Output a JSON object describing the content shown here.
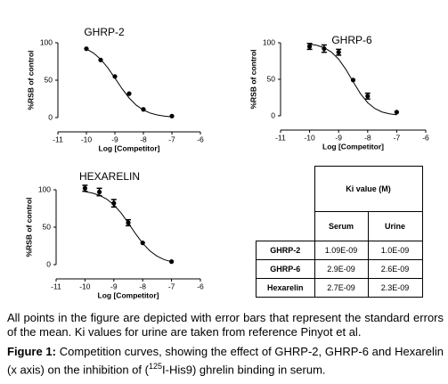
{
  "chart_data": [
    {
      "type": "scatter",
      "title": "GHRP-2",
      "x_label": "Log [Competitor]",
      "y_label": "%RSB of control",
      "xlim": [
        -11,
        -6
      ],
      "xticks": [
        -11,
        -10,
        -9,
        -8,
        -7,
        -6
      ],
      "ylim": [
        0,
        100
      ],
      "yticks": [
        0,
        50,
        100
      ],
      "series": [
        {
          "color": "#000000",
          "x": [
            -10,
            -9.5,
            -9,
            -8.5,
            -8,
            -7
          ],
          "values": [
            92,
            77,
            55,
            32,
            11,
            2
          ],
          "errors": [
            null,
            null,
            null,
            null,
            null,
            null
          ]
        }
      ],
      "fit": {
        "x": [
          -10,
          -9.75,
          -9.5,
          -9.25,
          -9,
          -8.75,
          -8.5,
          -8.25,
          -8,
          -7.75,
          -7.5,
          -7.25,
          -7
        ],
        "values": [
          91.8,
          86.3,
          78.0,
          66.6,
          52.9,
          38.7,
          26.2,
          16.6,
          10.1,
          5.9,
          3.4,
          2.0,
          1.1
        ]
      }
    },
    {
      "type": "scatter",
      "title": "GHRP-6",
      "x_label": "Log [Competitor]",
      "y_label": "%RSB of control",
      "xlim": [
        -11,
        -6
      ],
      "xticks": [
        -11,
        -10,
        -9,
        -8,
        -7,
        -6
      ],
      "ylim": [
        0,
        100
      ],
      "yticks": [
        0,
        50,
        100
      ],
      "series": [
        {
          "color": "#000000",
          "x": [
            -10,
            -9.5,
            -9,
            -8.5,
            -8,
            -7
          ],
          "values": [
            95,
            92,
            87,
            49,
            27,
            5
          ],
          "errors": [
            4,
            5,
            4,
            null,
            4,
            null
          ]
        }
      ],
      "fit": {
        "x": [
          -10,
          -9.75,
          -9.5,
          -9.25,
          -9,
          -8.75,
          -8.5,
          -8.25,
          -8,
          -7.75,
          -7.5,
          -7.25,
          -7
        ],
        "values": [
          98.2,
          96.5,
          93.3,
          87.3,
          77.6,
          63.5,
          46.6,
          30.4,
          18.0,
          9.9,
          5.2,
          2.7,
          1.4
        ]
      }
    },
    {
      "type": "scatter",
      "title": "HEXARELIN",
      "x_label": "Log [Competitor]",
      "y_label": "%RSB of control",
      "xlim": [
        -11,
        -6
      ],
      "xticks": [
        -11,
        -10,
        -9,
        -8,
        -7,
        -6
      ],
      "ylim": [
        0,
        100
      ],
      "yticks": [
        0,
        50,
        100
      ],
      "series": [
        {
          "color": "#000000",
          "x": [
            -10,
            -9.5,
            -9,
            -8.5,
            -8,
            -7
          ],
          "values": [
            102,
            97,
            82,
            56,
            29,
            4
          ],
          "errors": [
            4,
            5,
            5,
            4,
            null,
            null
          ]
        }
      ],
      "fit": {
        "x": [
          -10,
          -9.75,
          -9.5,
          -9.25,
          -9,
          -8.75,
          -8.5,
          -8.25,
          -8,
          -7.75,
          -7.5,
          -7.25,
          -7
        ],
        "values": [
          97.5,
          95.7,
          92.6,
          87.6,
          79.9,
          69.1,
          55.7,
          41.4,
          28.5,
          18.3,
          11.2,
          6.6,
          3.8
        ]
      }
    }
  ],
  "table": {
    "header": "Ki value (M)",
    "columns": [
      "Serum",
      "Urine"
    ],
    "rows": [
      [
        "GHRP-2",
        "1.09E-09",
        "1.0E-09"
      ],
      [
        "GHRP-6",
        "2.9E-09",
        "2.6E-09"
      ],
      [
        "Hexarelin",
        "2.7E-09",
        "2.3E-09"
      ]
    ]
  },
  "note": "All points in the figure are depicted with error bars that represent the standard errors of the mean. Ki values for urine are taken from reference Pinyot et al.",
  "caption": {
    "label": "Figure 1:",
    "text_before": " Competition curves, showing the effect of GHRP-2, GHRP-6 and Hexarelin (x axis) on the inhibition of (",
    "superscript": "125",
    "text_after": "I-His9) ghrelin binding in serum."
  }
}
